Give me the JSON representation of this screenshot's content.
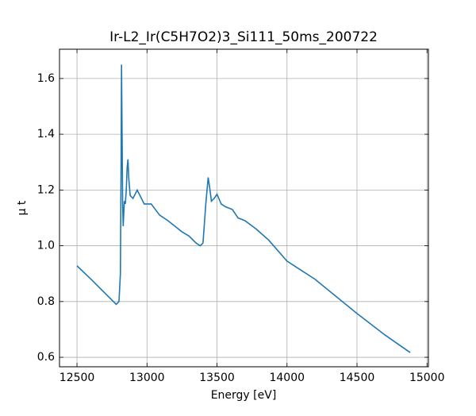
{
  "chart_data": {
    "type": "line",
    "title": "Ir-L2_Ir(C5H7O2)3_Si111_50ms_200722",
    "x_label": "Energy [eV]",
    "y_label": "μ t",
    "x": [
      12500,
      12600,
      12700,
      12780,
      12800,
      12810,
      12815,
      12818,
      12822,
      12826,
      12830,
      12838,
      12845,
      12852,
      12858,
      12864,
      12870,
      12880,
      12900,
      12930,
      12950,
      12980,
      13030,
      13060,
      13090,
      13150,
      13200,
      13250,
      13300,
      13350,
      13380,
      13400,
      13420,
      13437,
      13450,
      13460,
      13480,
      13500,
      13530,
      13560,
      13610,
      13650,
      13700,
      13780,
      13870,
      14000,
      14200,
      14500,
      14700,
      14880
    ],
    "values": [
      0.928,
      0.88,
      0.83,
      0.79,
      0.8,
      0.9,
      1.3,
      1.65,
      1.4,
      1.15,
      1.07,
      1.16,
      1.15,
      1.2,
      1.28,
      1.31,
      1.24,
      1.18,
      1.17,
      1.2,
      1.18,
      1.15,
      1.15,
      1.13,
      1.11,
      1.09,
      1.07,
      1.05,
      1.035,
      1.01,
      1.0,
      1.01,
      1.15,
      1.245,
      1.2,
      1.16,
      1.17,
      1.185,
      1.15,
      1.14,
      1.13,
      1.1,
      1.09,
      1.06,
      1.02,
      0.945,
      0.88,
      0.757,
      0.68,
      0.617
    ],
    "color": "#1f77b4",
    "xlim": [
      12375,
      15010
    ],
    "ylim": [
      0.566,
      1.705
    ],
    "xticks": [
      12500,
      13000,
      13500,
      14000,
      14500,
      15000
    ],
    "yticks": [
      0.6,
      0.8,
      {
        "value": 1,
        "label": "1.0"
      },
      1.2,
      1.4,
      1.6
    ],
    "grid": true
  }
}
